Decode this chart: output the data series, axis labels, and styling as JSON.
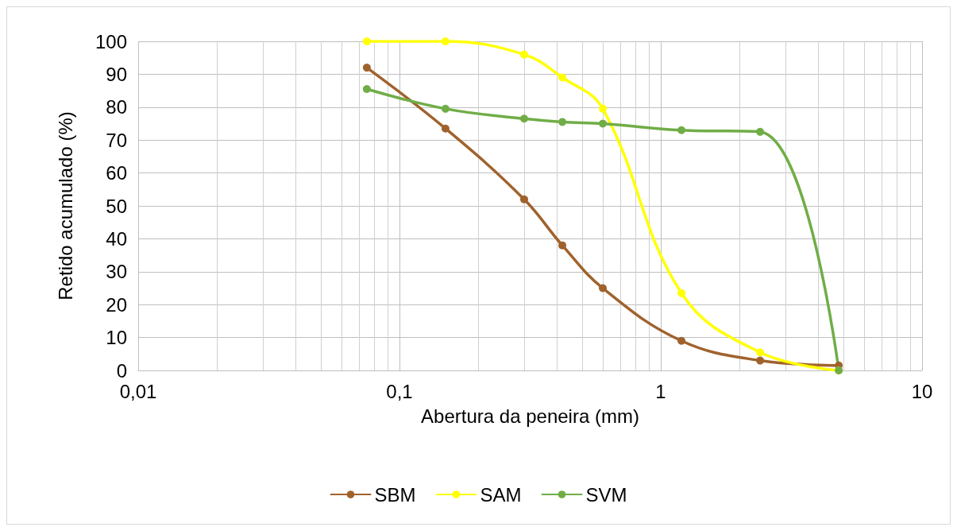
{
  "chart_data": {
    "type": "line",
    "xlabel": "Abertura da peneira (mm)",
    "ylabel": "Retido acumulado (%)",
    "log": "x",
    "xlim": [
      0.01,
      10
    ],
    "xticks": [
      {
        "value": 0.01,
        "label": "0,01"
      },
      {
        "value": 0.1,
        "label": "0,1"
      },
      1,
      10
    ],
    "ylim": [
      0,
      100
    ],
    "yticks": [
      0,
      10,
      20,
      30,
      40,
      50,
      60,
      70,
      80,
      90,
      100
    ],
    "grid": true,
    "legend": "bottom",
    "marker": "circle",
    "line_style": "solid",
    "x": [
      0.075,
      0.15,
      0.3,
      0.42,
      0.6,
      1.2,
      2.4,
      4.8
    ],
    "series": [
      {
        "name": "SBM",
        "color": "#a0622d",
        "values": [
          92,
          73.5,
          52,
          38,
          25,
          9,
          3,
          1.5
        ]
      },
      {
        "name": "SAM",
        "color": "#ffff00",
        "values": [
          100,
          100,
          96,
          89,
          79.5,
          23.5,
          5.5,
          0
        ]
      },
      {
        "name": "SVM",
        "color": "#70ad47",
        "values": [
          85.5,
          79.5,
          76.5,
          75.5,
          75,
          73,
          72.5,
          0
        ]
      }
    ]
  }
}
